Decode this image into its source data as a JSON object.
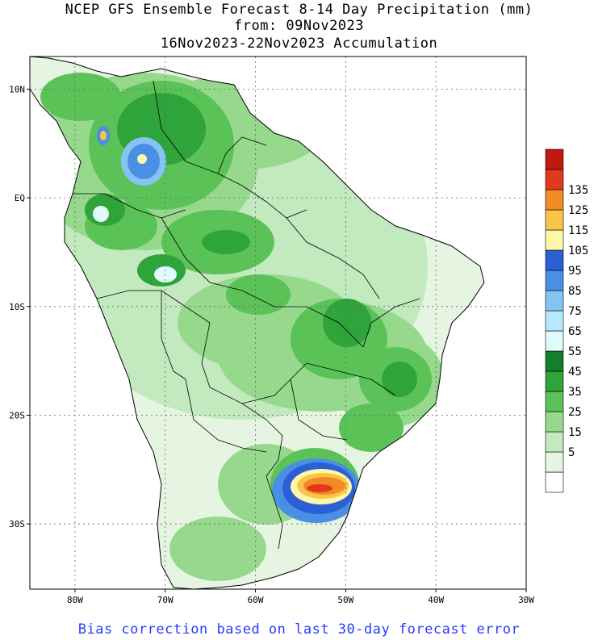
{
  "title": {
    "line1": "NCEP GFS Ensemble Forecast 8-14 Day Precipitation (mm)",
    "line2": "from: 09Nov2023",
    "line3": "16Nov2023-22Nov2023 Accumulation"
  },
  "footer": "Bias correction based on last 30-day forecast error",
  "lat_ticks": [
    {
      "label": "10N",
      "lat": 10
    },
    {
      "label": "EQ",
      "lat": 0
    },
    {
      "label": "10S",
      "lat": -10
    },
    {
      "label": "20S",
      "lat": -20
    },
    {
      "label": "30S",
      "lat": -30
    }
  ],
  "lon_ticks": [
    {
      "label": "80W",
      "lon": -80
    },
    {
      "label": "70W",
      "lon": -70
    },
    {
      "label": "60W",
      "lon": -60
    },
    {
      "label": "50W",
      "lon": -50
    },
    {
      "label": "40W",
      "lon": -40
    },
    {
      "label": "30W",
      "lon": -30
    }
  ],
  "map_extent": {
    "lon_min": -85,
    "lon_max": -30,
    "lat_min": -36,
    "lat_max": 13
  },
  "colorbar": {
    "levels": [
      {
        "label": "",
        "color": "#ffffff"
      },
      {
        "label": "5",
        "color": "#e6f5e1"
      },
      {
        "label": "15",
        "color": "#c3e9be"
      },
      {
        "label": "25",
        "color": "#96d98d"
      },
      {
        "label": "35",
        "color": "#5bc257"
      },
      {
        "label": "45",
        "color": "#2ea43a"
      },
      {
        "label": "55",
        "color": "#137f28"
      },
      {
        "label": "65",
        "color": "#e1fbfd"
      },
      {
        "label": "75",
        "color": "#b7e8fb"
      },
      {
        "label": "85",
        "color": "#84c4f2"
      },
      {
        "label": "95",
        "color": "#4a8fe3"
      },
      {
        "label": "105",
        "color": "#2a60d4"
      },
      {
        "label": "115",
        "color": "#fdf7a8"
      },
      {
        "label": "125",
        "color": "#f8c449"
      },
      {
        "label": "135",
        "color": "#f28a25"
      },
      {
        "label": "",
        "color": "#e03a1a"
      },
      {
        "label": "",
        "color": "#c11812"
      }
    ]
  }
}
